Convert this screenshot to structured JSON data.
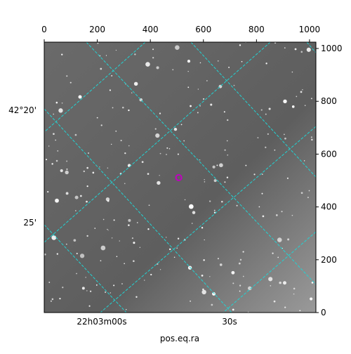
{
  "chart_data": {
    "type": "image",
    "xlabel": "pos.eq.ra",
    "xlim": [
      0,
      1024
    ],
    "ylim": [
      0,
      1024
    ],
    "xticks": [
      0,
      200,
      400,
      600,
      800,
      1000
    ],
    "yticks": [
      0,
      200,
      400,
      600,
      800,
      1000
    ],
    "ra_labels": [
      "22h03m00s",
      "30s"
    ],
    "dec_labels": [
      "42°20'",
      "25'"
    ],
    "marker": {
      "x": 507,
      "y": 511,
      "color": "#c000c0"
    }
  }
}
